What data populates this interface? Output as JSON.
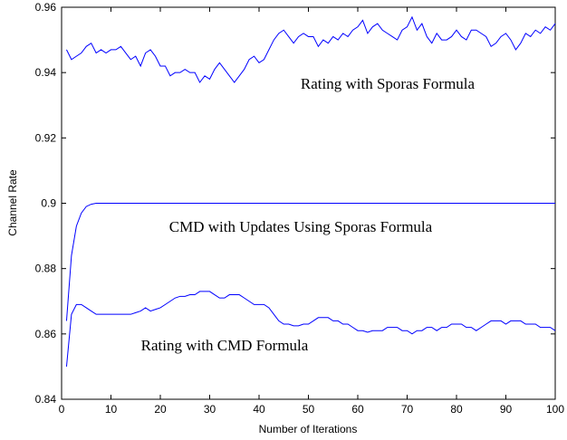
{
  "chart_data": {
    "type": "line",
    "xlabel": "Number of Iterations",
    "ylabel": "Channel Rate",
    "x": [
      1,
      2,
      3,
      4,
      5,
      6,
      7,
      8,
      9,
      10,
      11,
      12,
      13,
      14,
      15,
      16,
      17,
      18,
      19,
      20,
      21,
      22,
      23,
      24,
      25,
      26,
      27,
      28,
      29,
      30,
      31,
      32,
      33,
      34,
      35,
      36,
      37,
      38,
      39,
      40,
      41,
      42,
      43,
      44,
      45,
      46,
      47,
      48,
      49,
      50,
      51,
      52,
      53,
      54,
      55,
      56,
      57,
      58,
      59,
      60,
      61,
      62,
      63,
      64,
      65,
      66,
      67,
      68,
      69,
      70,
      71,
      72,
      73,
      74,
      75,
      76,
      77,
      78,
      79,
      80,
      81,
      82,
      83,
      84,
      85,
      86,
      87,
      88,
      89,
      90,
      91,
      92,
      93,
      94,
      95,
      96,
      97,
      98,
      99,
      100
    ],
    "series": [
      {
        "name": "Rating with Sporas Formula",
        "color": "#0000ff",
        "values": [
          0.947,
          0.944,
          0.945,
          0.946,
          0.948,
          0.949,
          0.946,
          0.947,
          0.946,
          0.947,
          0.947,
          0.948,
          0.946,
          0.944,
          0.945,
          0.942,
          0.946,
          0.947,
          0.945,
          0.942,
          0.942,
          0.939,
          0.94,
          0.94,
          0.941,
          0.94,
          0.94,
          0.937,
          0.939,
          0.938,
          0.941,
          0.943,
          0.941,
          0.939,
          0.937,
          0.939,
          0.941,
          0.944,
          0.945,
          0.943,
          0.944,
          0.947,
          0.95,
          0.952,
          0.953,
          0.951,
          0.949,
          0.951,
          0.952,
          0.951,
          0.951,
          0.948,
          0.95,
          0.949,
          0.951,
          0.95,
          0.952,
          0.951,
          0.953,
          0.954,
          0.956,
          0.952,
          0.954,
          0.955,
          0.953,
          0.952,
          0.951,
          0.95,
          0.953,
          0.954,
          0.957,
          0.953,
          0.955,
          0.951,
          0.949,
          0.952,
          0.95,
          0.95,
          0.951,
          0.953,
          0.951,
          0.95,
          0.953,
          0.953,
          0.952,
          0.951,
          0.948,
          0.949,
          0.951,
          0.952,
          0.95,
          0.947,
          0.949,
          0.952,
          0.951,
          0.953,
          0.952,
          0.954,
          0.953,
          0.955
        ]
      },
      {
        "name": "CMD with Updates Using Sporas Formula",
        "color": "#0000ff",
        "values": [
          0.864,
          0.884,
          0.893,
          0.897,
          0.899,
          0.8997,
          0.9,
          0.9,
          0.9,
          0.9,
          0.9,
          0.9,
          0.9,
          0.9,
          0.9,
          0.9,
          0.9,
          0.9,
          0.9,
          0.9,
          0.9,
          0.9,
          0.9,
          0.9,
          0.9,
          0.9,
          0.9,
          0.9,
          0.9,
          0.9,
          0.9,
          0.9,
          0.9,
          0.9,
          0.9,
          0.9,
          0.9,
          0.9,
          0.9,
          0.9,
          0.9,
          0.9,
          0.9,
          0.9,
          0.9,
          0.9,
          0.9,
          0.9,
          0.9,
          0.9,
          0.9,
          0.9,
          0.9,
          0.9,
          0.9,
          0.9,
          0.9,
          0.9,
          0.9,
          0.9,
          0.9,
          0.9,
          0.9,
          0.9,
          0.9,
          0.9,
          0.9,
          0.9,
          0.9,
          0.9,
          0.9,
          0.9,
          0.9,
          0.9,
          0.9,
          0.9,
          0.9,
          0.9,
          0.9,
          0.9,
          0.9,
          0.9,
          0.9,
          0.9,
          0.9,
          0.9,
          0.9,
          0.9,
          0.9,
          0.9,
          0.9,
          0.9,
          0.9,
          0.9,
          0.9,
          0.9,
          0.9,
          0.9,
          0.9,
          0.9
        ]
      },
      {
        "name": "Rating with CMD Formula",
        "color": "#0000ff",
        "values": [
          0.85,
          0.866,
          0.869,
          0.869,
          0.868,
          0.867,
          0.866,
          0.866,
          0.866,
          0.866,
          0.866,
          0.866,
          0.866,
          0.866,
          0.8665,
          0.867,
          0.868,
          0.867,
          0.8675,
          0.868,
          0.869,
          0.87,
          0.871,
          0.8715,
          0.8715,
          0.872,
          0.872,
          0.873,
          0.873,
          0.873,
          0.872,
          0.871,
          0.871,
          0.872,
          0.872,
          0.872,
          0.871,
          0.87,
          0.869,
          0.869,
          0.869,
          0.868,
          0.866,
          0.864,
          0.863,
          0.863,
          0.8625,
          0.8625,
          0.863,
          0.863,
          0.864,
          0.865,
          0.865,
          0.865,
          0.864,
          0.864,
          0.863,
          0.863,
          0.862,
          0.861,
          0.861,
          0.8605,
          0.861,
          0.861,
          0.861,
          0.862,
          0.862,
          0.862,
          0.861,
          0.861,
          0.86,
          0.861,
          0.861,
          0.862,
          0.862,
          0.861,
          0.862,
          0.862,
          0.863,
          0.863,
          0.863,
          0.862,
          0.862,
          0.861,
          0.862,
          0.863,
          0.864,
          0.864,
          0.864,
          0.863,
          0.864,
          0.864,
          0.864,
          0.863,
          0.863,
          0.863,
          0.862,
          0.862,
          0.862,
          0.861
        ]
      }
    ],
    "xlim": [
      0,
      100
    ],
    "xticks": [
      0,
      10,
      20,
      30,
      40,
      50,
      60,
      70,
      80,
      90,
      100
    ],
    "ylim": [
      0.84,
      0.96
    ],
    "yticks": [
      0.84,
      0.86,
      0.88,
      0.9,
      0.92,
      0.94,
      0.96
    ]
  }
}
